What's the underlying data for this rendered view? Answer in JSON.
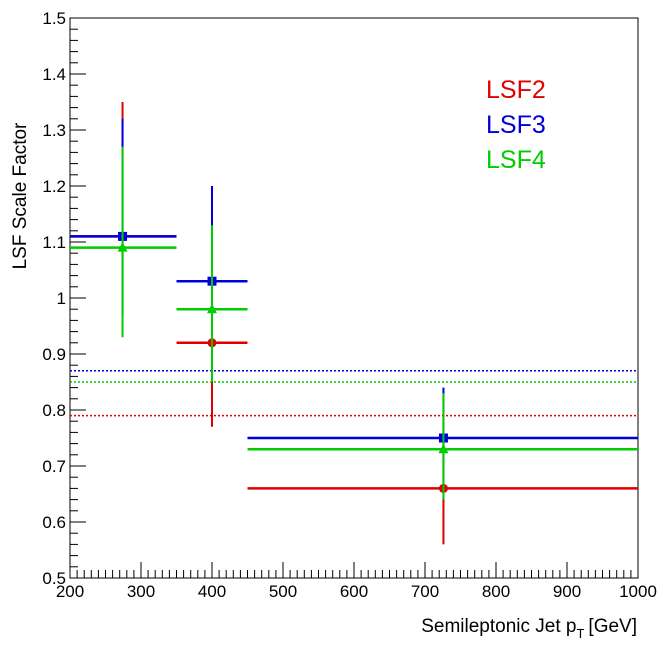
{
  "chart_data": {
    "type": "scatter",
    "xlabel": "Semileptonic Jet p",
    "xlabel_sub": "T",
    "xlabel_unit": "[GeV]",
    "ylabel": "LSF Scale Factor",
    "xlim": [
      200,
      1000
    ],
    "ylim": [
      0.5,
      1.5
    ],
    "x_ticks": [
      200,
      300,
      400,
      500,
      600,
      700,
      800,
      900,
      1000
    ],
    "y_ticks": [
      0.5,
      0.6,
      0.7,
      0.8,
      0.9,
      1,
      1.1,
      1.2,
      1.3,
      1.4,
      1.5
    ],
    "y_tick_labels": [
      "0.5",
      "0.6",
      "0.7",
      "0.8",
      "0.9",
      "1",
      "1.1",
      "1.2",
      "1.3",
      "1.4",
      "1.5"
    ],
    "x_tick_labels": [
      "200",
      "300",
      "400",
      "500",
      "600",
      "700",
      "800",
      "900",
      "1000"
    ],
    "grid": false,
    "legend_position": "top-right",
    "series": [
      {
        "name": "LSF2",
        "color": "#e00000",
        "marker": "circle",
        "average": 0.79,
        "points": [
          {
            "x": 274,
            "x_low": 200,
            "x_high": 350,
            "y": 1.11,
            "y_low": 0.97,
            "y_high": 1.35
          },
          {
            "x": 400,
            "x_low": 350,
            "x_high": 450,
            "y": 0.92,
            "y_low": 0.77,
            "y_high": 1.08
          },
          {
            "x": 726,
            "x_low": 450,
            "x_high": 1000,
            "y": 0.66,
            "y_low": 0.56,
            "y_high": 0.77
          }
        ]
      },
      {
        "name": "LSF3",
        "color": "#0000dd",
        "marker": "square",
        "average": 0.87,
        "points": [
          {
            "x": 274,
            "x_low": 200,
            "x_high": 350,
            "y": 1.11,
            "y_low": 0.97,
            "y_high": 1.32
          },
          {
            "x": 400,
            "x_low": 350,
            "x_high": 450,
            "y": 1.03,
            "y_low": 0.86,
            "y_high": 1.2
          },
          {
            "x": 726,
            "x_low": 450,
            "x_high": 1000,
            "y": 0.75,
            "y_low": 0.65,
            "y_high": 0.84
          }
        ]
      },
      {
        "name": "LSF4",
        "color": "#00cc00",
        "marker": "triangle",
        "average": 0.85,
        "points": [
          {
            "x": 274,
            "x_low": 200,
            "x_high": 350,
            "y": 1.09,
            "y_low": 0.93,
            "y_high": 1.27
          },
          {
            "x": 400,
            "x_low": 350,
            "x_high": 450,
            "y": 0.98,
            "y_low": 0.85,
            "y_high": 1.13
          },
          {
            "x": 726,
            "x_low": 450,
            "x_high": 1000,
            "y": 0.73,
            "y_low": 0.64,
            "y_high": 0.83
          }
        ]
      }
    ]
  }
}
